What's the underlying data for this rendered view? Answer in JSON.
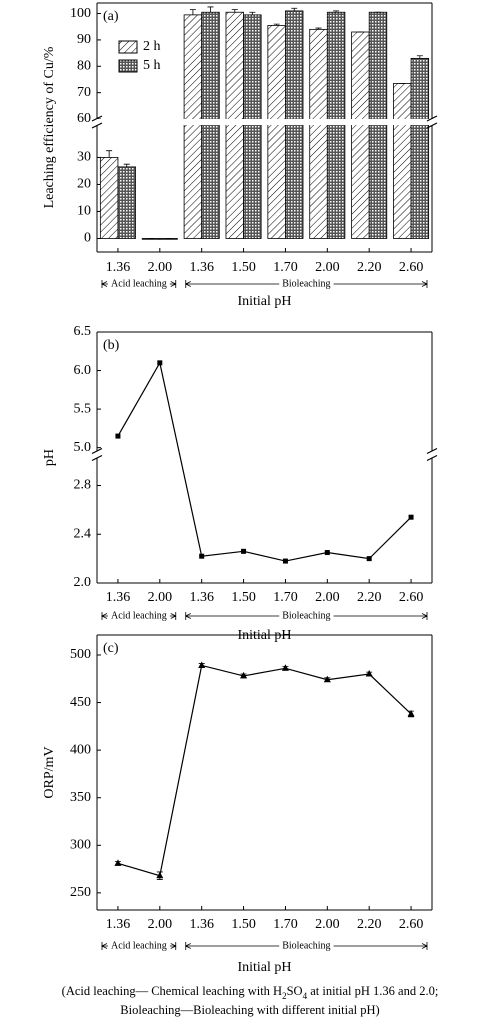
{
  "chart_data": [
    {
      "type": "bar",
      "panel_label": "(a)",
      "y_label": "Leaching efficiency of Cu/%",
      "x_label": "Initial pH",
      "categories": [
        "1.36",
        "2.00",
        "1.36",
        "1.50",
        "1.70",
        "2.00",
        "2.20",
        "2.60"
      ],
      "groups": [
        {
          "name": "Acid leaching",
          "size": 2
        },
        {
          "name": "Bioleaching",
          "size": 6
        }
      ],
      "series": [
        {
          "name": "2 h",
          "color": "#000000",
          "pattern": "hatch",
          "values": [
            30,
            0,
            99.5,
            100.5,
            95.5,
            94,
            93,
            73.5
          ],
          "errors": [
            2.5,
            0,
            2,
            1,
            0.5,
            0.5,
            0,
            0
          ]
        },
        {
          "name": "5 h",
          "color": "#000000",
          "pattern": "crosshatch",
          "values": [
            26.5,
            0,
            100.5,
            99.5,
            101,
            100.5,
            100.5,
            83
          ],
          "errors": [
            1,
            0,
            2,
            1,
            1,
            0.5,
            0,
            1
          ]
        }
      ],
      "ylim": [
        -5,
        104
      ],
      "y_break": [
        42,
        60
      ],
      "yticks": [
        0,
        10,
        20,
        30,
        60,
        70,
        80,
        90,
        100
      ],
      "legend": "upper left"
    },
    {
      "type": "line",
      "panel_label": "(b)",
      "y_label": "pH",
      "x_label": "Initial pH",
      "categories": [
        "1.36",
        "2.00",
        "1.36",
        "1.50",
        "1.70",
        "2.00",
        "2.20",
        "2.60"
      ],
      "groups": [
        {
          "name": "Acid leaching",
          "size": 2
        },
        {
          "name": "Bioleaching",
          "size": 6
        }
      ],
      "values": [
        5.15,
        6.1,
        2.22,
        2.26,
        2.18,
        2.25,
        2.2,
        2.54
      ],
      "color": "#000000",
      "marker": "square",
      "ylim": [
        2.0,
        6.5
      ],
      "y_break": [
        3.03,
        4.95
      ],
      "yticks": [
        {
          "value": 2,
          "label": "2.0"
        },
        2.4,
        2.8,
        {
          "value": 5,
          "label": "5.0"
        },
        5.5,
        {
          "value": 6,
          "label": "6.0"
        },
        6.5
      ]
    },
    {
      "type": "line",
      "panel_label": "(c)",
      "y_label": "ORP/mV",
      "x_label": "Initial pH",
      "categories": [
        "1.36",
        "2.00",
        "1.36",
        "1.50",
        "1.70",
        "2.00",
        "2.20",
        "2.60"
      ],
      "groups": [
        {
          "name": "Acid leaching",
          "size": 2
        },
        {
          "name": "Bioleaching",
          "size": 6
        }
      ],
      "values": [
        281,
        268,
        489,
        478,
        486,
        474,
        480,
        438
      ],
      "errors": [
        2,
        4,
        2,
        2,
        2,
        2,
        2,
        3
      ],
      "color": "#000000",
      "marker": "triangle",
      "ylim": [
        232,
        521
      ],
      "yticks": [
        250,
        300,
        350,
        400,
        450,
        500
      ]
    }
  ],
  "caption": {
    "lines": [
      [
        "(Acid leaching— Chemical leaching with H",
        "2",
        "SO",
        "4",
        " at initial pH 1.36 and 2.0;"
      ],
      [
        "Bioleaching—Bioleaching with different initial pH)"
      ]
    ]
  }
}
